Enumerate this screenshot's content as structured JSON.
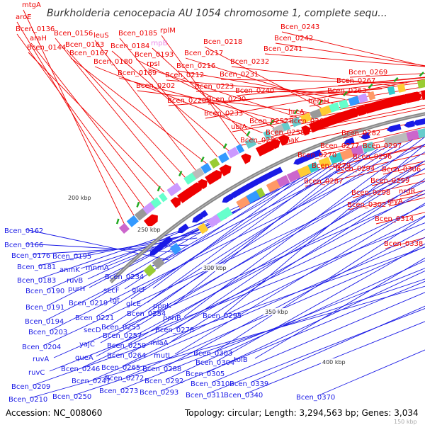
{
  "title": "Burkholderia cenocepacia AU 1054 chromosome 1, complete sequ...",
  "footer": {
    "accession": "Accession: NC_008060",
    "summary": "Topology: circular; Length: 3,294,563 bp; Genes: 3,034"
  },
  "zoom_label": "150 kbp",
  "colors": {
    "forward": "#ee0000",
    "reverse": "#1a1ae6",
    "rna": "#e888e8",
    "backbone": "#888888"
  },
  "tick_labels": [
    "200 kbp",
    "250 kbp",
    "300 kbp",
    "350 kbp",
    "400 kbp"
  ],
  "forward_genes": [
    "mtgA",
    "aroE",
    "Bcen_0136",
    "araH",
    "Bcen_0144",
    "Bcen_0156",
    "Bcen_0163",
    "leuS",
    "Bcen_0167",
    "Bcen_0185",
    "Bcen_0184",
    "rplM",
    "rnpB",
    "Bcen_0180",
    "Bcen_0193",
    "Bcen_0189",
    "rpsI",
    "Bcen_0202",
    "Bcen_0218",
    "Bcen_0217",
    "Bcen_0216",
    "Bcen_0212",
    "Bcen_0223",
    "Bcen_0220",
    "Bcen_0232",
    "Bcen_0231",
    "Bcen_0230",
    "Bcen_0233",
    "Bcen_0240",
    "Bcen_0243",
    "Bcen_0242",
    "Bcen_0241",
    "Bcen_0269",
    "Bcen_0267",
    "Bcen_0263",
    "hemH",
    "hrcA",
    "Bcen_0252",
    "Bcen_0266",
    "ubiA",
    "Bcen_0258",
    "Bcen_0253",
    "dnaK",
    "Bcen_0282",
    "Bcen_0277",
    "Bcen_0270",
    "Bcen_0297",
    "Bcen_0296",
    "Bcen_0279",
    "Bcen_0294",
    "Bcen_0306",
    "Bcen_0287",
    "Bcen_0299",
    "Bcen_0298",
    "nrdR",
    "glyA",
    "Bcen_0302",
    "Bcen_0314",
    "Bcen_0338"
  ],
  "reverse_genes": [
    "Bcen_0162",
    "Bcen_0166",
    "Bcen_0176",
    "Bcen_0195",
    "Bcen_0181",
    "anmK",
    "mnmA",
    "Bcen_0183",
    "ruvB",
    "Bcen_0234",
    "Bcen_0190",
    "purH",
    "secF",
    "glcF",
    "Bcen_0191",
    "Bcen_0219",
    "tgt",
    "glcE",
    "ppnK",
    "Bcen_0221",
    "Bcen_0254",
    "Bcen_0194",
    "secD",
    "Bcen_0255",
    "panB",
    "Bcen_0295",
    "Bcen_0203",
    "Bcen_0257",
    "Bcen_0278",
    "yajC",
    "Bcen_0259",
    "miaA",
    "Bcen_0204",
    "queA",
    "Bcen_0264",
    "mutL",
    "Bcen_0303",
    "ruvA",
    "Bcen_0246",
    "Bcen_0265",
    "Bcen_0288",
    "Bcen_0304",
    "tolB",
    "ruvC",
    "Bcen_0247",
    "Bcen_0272",
    "Bcen_0292",
    "Bcen_0305",
    "Bcen_0209",
    "Bcen_0273",
    "Bcen_0293",
    "Bcen_0310",
    "Bcen_0339",
    "Bcen_0250",
    "Bcen_0311",
    "Bcen_0340",
    "Bcen_0210",
    "Bcen_0370"
  ]
}
